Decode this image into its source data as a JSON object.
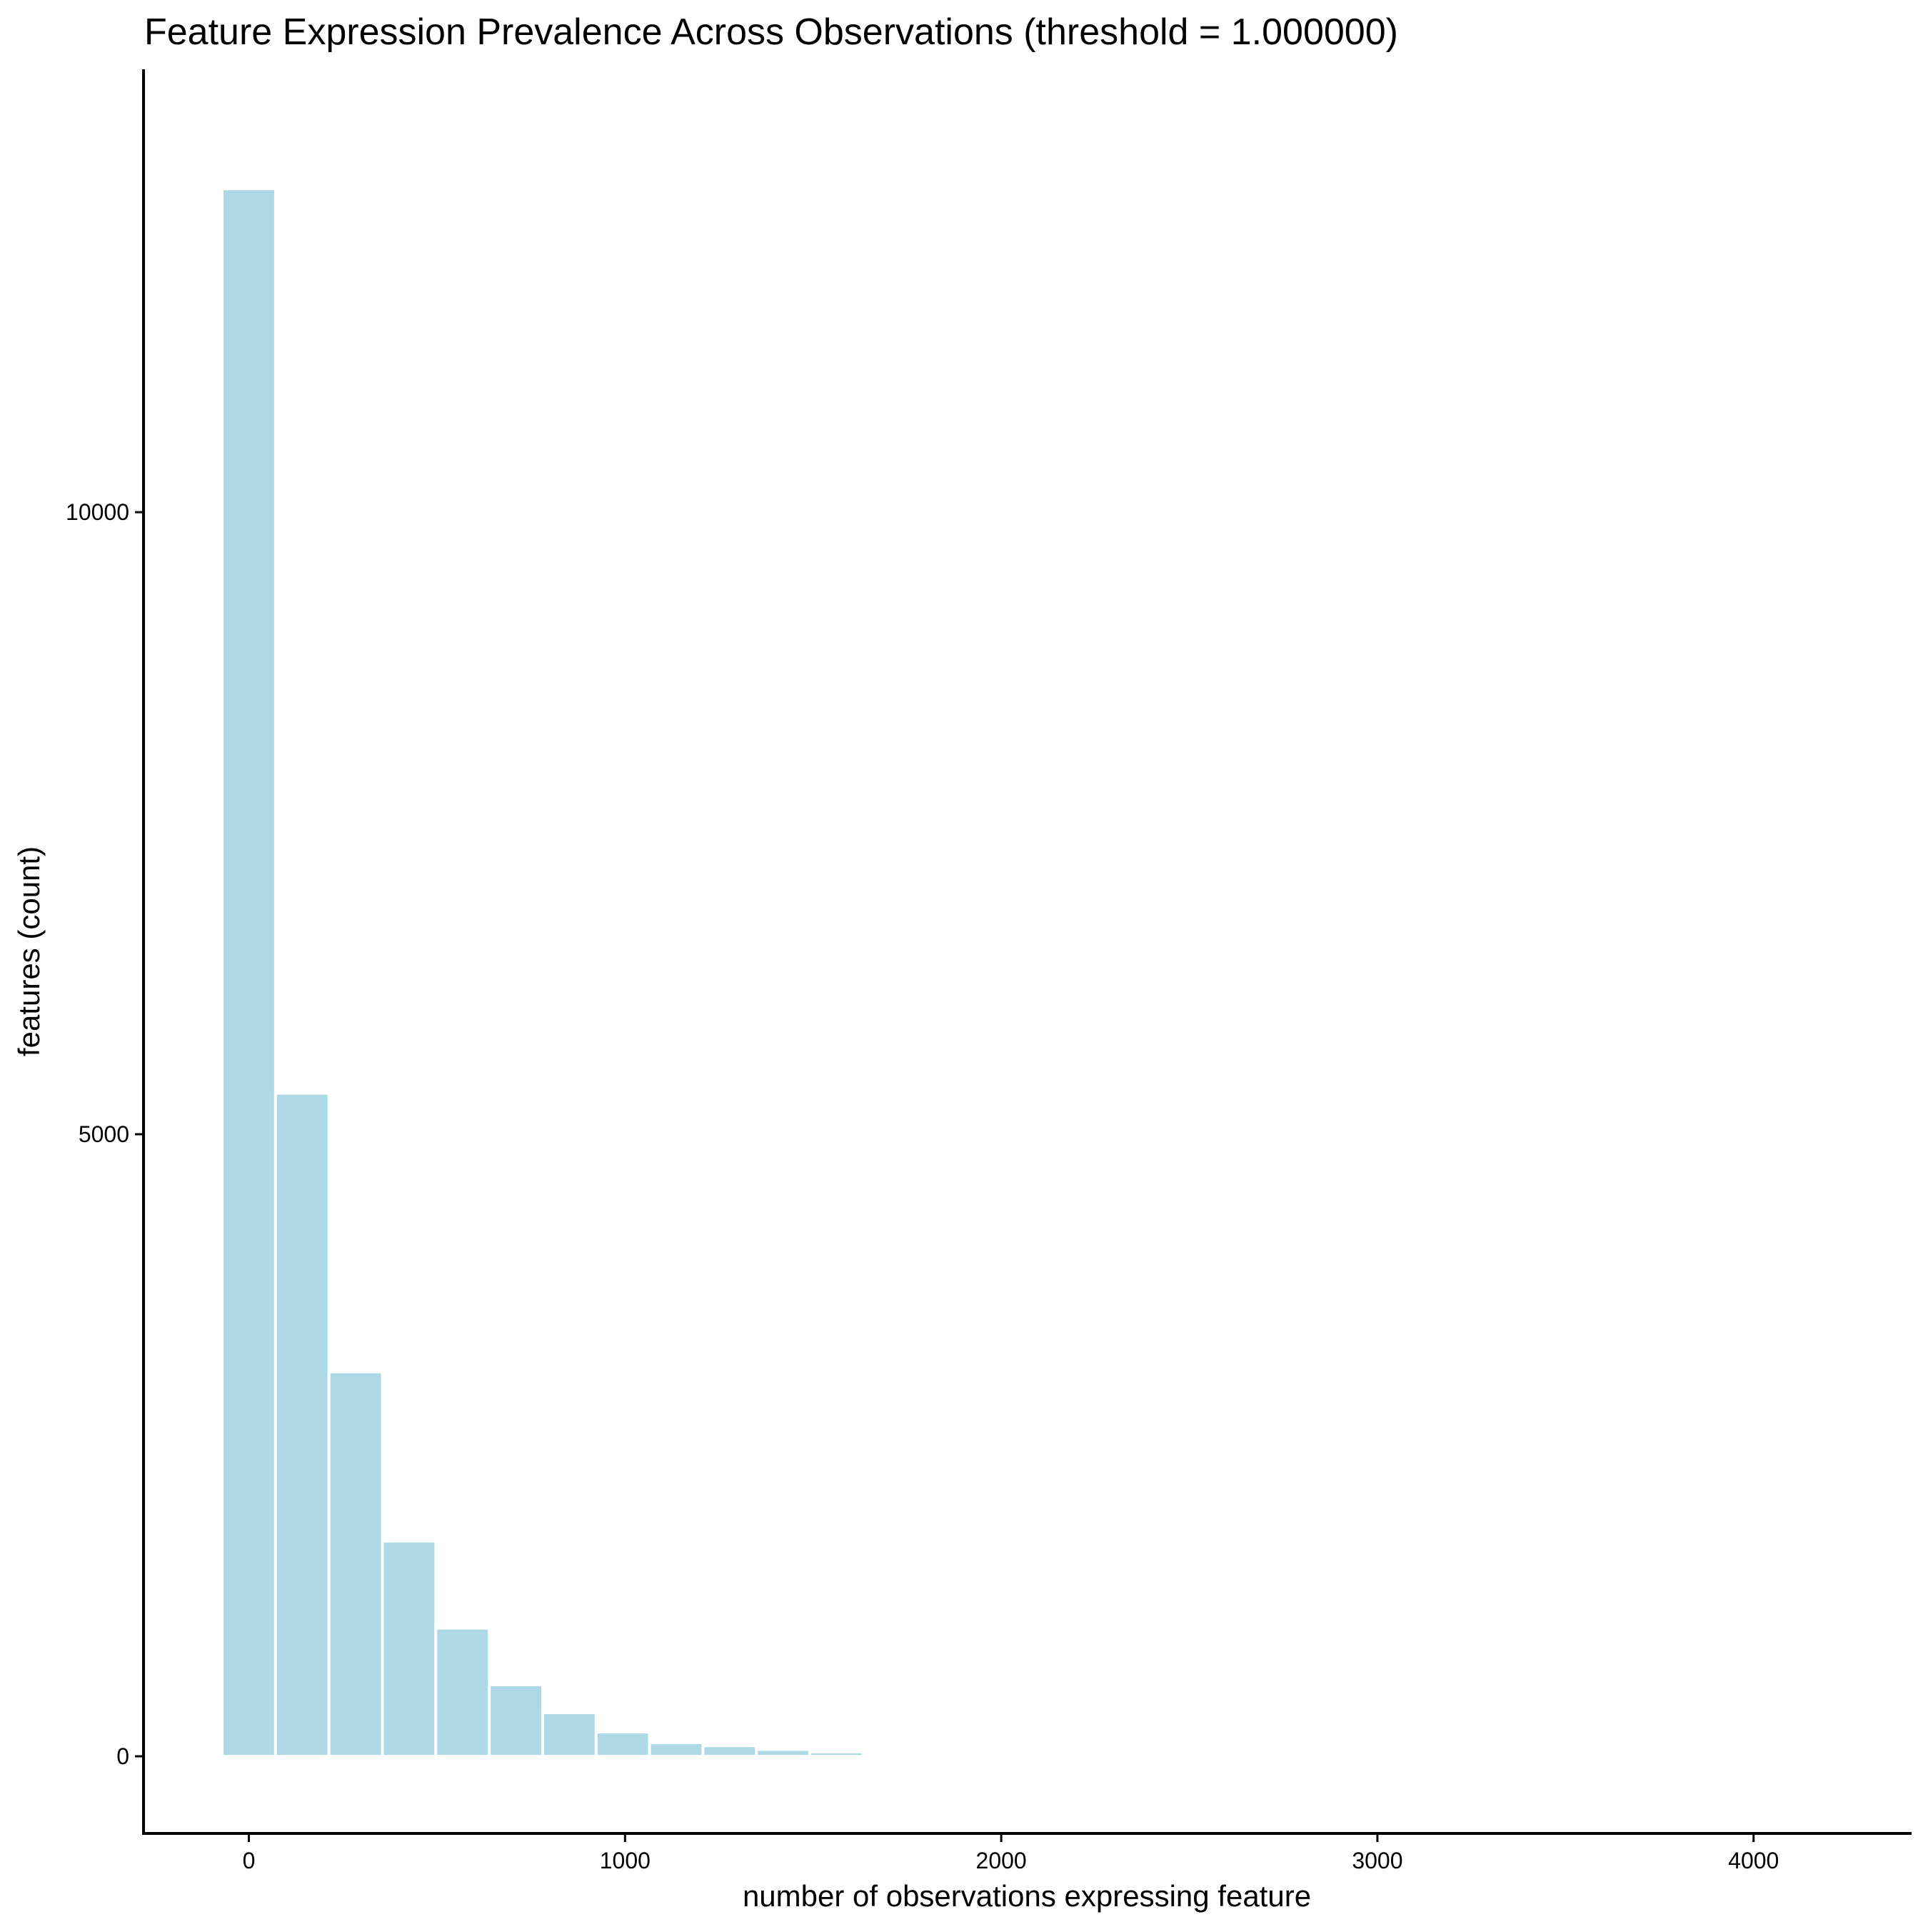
{
  "chart_data": {
    "type": "bar",
    "title": "Feature Expression Prevalence Across Observations (threshold = 1.000000)",
    "xlabel": "number of observations expressing feature",
    "ylabel": "features (count)",
    "xlim": [
      -280,
      4420
    ],
    "ylim": [
      -620,
      13560
    ],
    "x_ticks": [
      0,
      1000,
      2000,
      3000,
      4000
    ],
    "x_tick_labels": [
      "0",
      "1000",
      "2000",
      "3000",
      "4000"
    ],
    "y_ticks": [
      0,
      5000,
      10000
    ],
    "y_tick_labels": [
      "0",
      "5000",
      "10000"
    ],
    "bin_width": 142,
    "bins": [
      {
        "x": 0,
        "count": 12600
      },
      {
        "x": 142,
        "count": 5330
      },
      {
        "x": 284,
        "count": 3090
      },
      {
        "x": 426,
        "count": 1730
      },
      {
        "x": 568,
        "count": 1030
      },
      {
        "x": 710,
        "count": 575
      },
      {
        "x": 852,
        "count": 350
      },
      {
        "x": 994,
        "count": 195
      },
      {
        "x": 1136,
        "count": 110
      },
      {
        "x": 1278,
        "count": 85
      },
      {
        "x": 1420,
        "count": 55
      },
      {
        "x": 1562,
        "count": 35
      },
      {
        "x": 1704,
        "count": 20
      },
      {
        "x": 1846,
        "count": 8
      }
    ],
    "grid": false,
    "legend": "none",
    "bar_color": "#add8e6",
    "bar_edge_color": "#ffffff"
  }
}
